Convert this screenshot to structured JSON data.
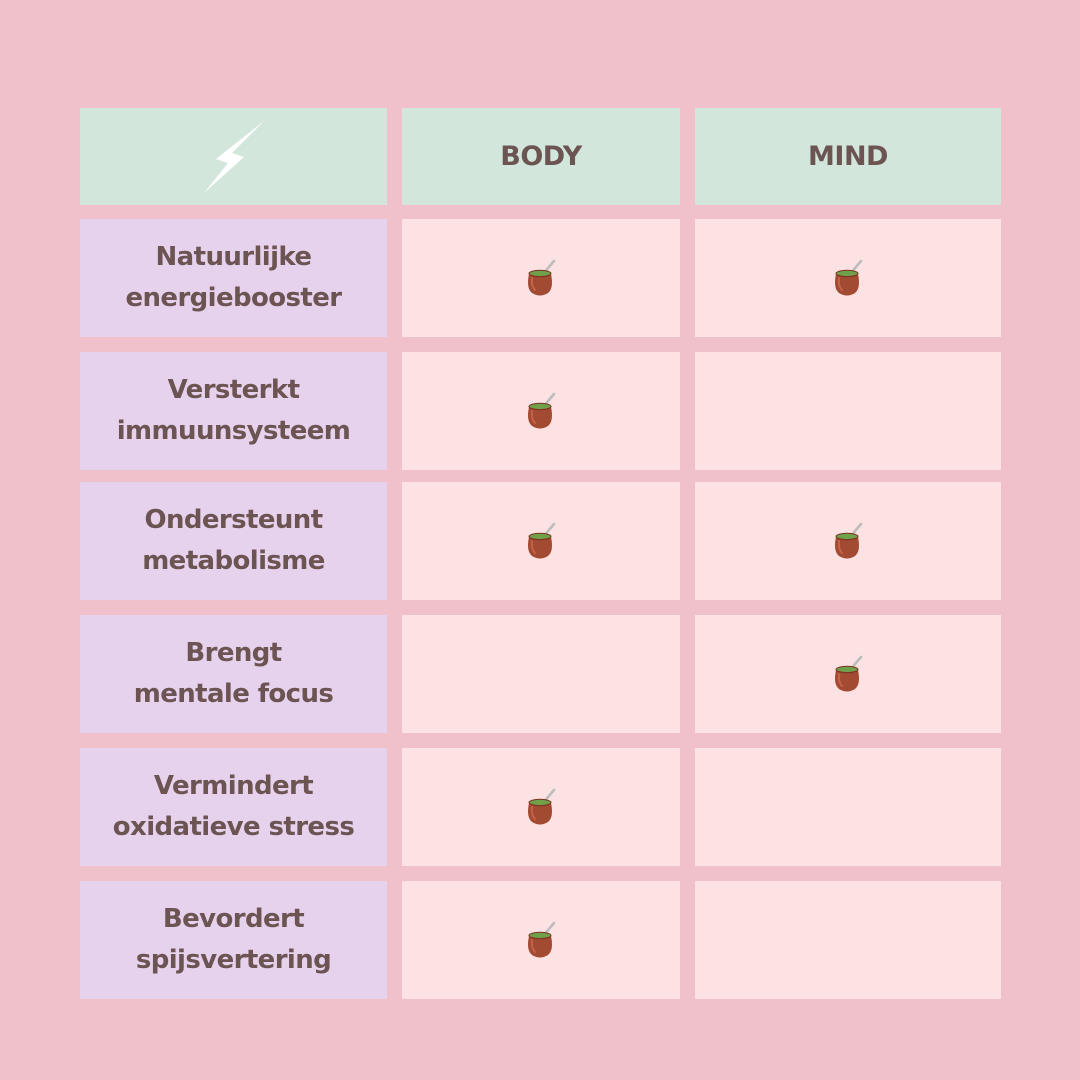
{
  "colors": {
    "background": "#f0c0cb",
    "header_bg": "#d2e6db",
    "label_bg": "#e7d2ee",
    "cell_bg": "#fce2e2",
    "text": "#6b5452"
  },
  "header": {
    "icon": "lightning-bolt-icon",
    "columns": [
      "BODY",
      "MIND"
    ]
  },
  "rows": [
    {
      "label_lines": [
        "Natuurlijke",
        "energiebooster"
      ],
      "body": true,
      "mind": true,
      "icon": "mate-gourd-icon"
    },
    {
      "label_lines": [
        "Versterkt",
        "immuunsysteem"
      ],
      "body": true,
      "mind": false,
      "icon": "mate-gourd-icon"
    },
    {
      "label_lines": [
        "Ondersteunt",
        "metabolisme"
      ],
      "body": true,
      "mind": true,
      "icon": "mate-gourd-icon"
    },
    {
      "label_lines": [
        "Brengt",
        "mentale focus"
      ],
      "body": false,
      "mind": true,
      "icon": "mate-gourd-icon"
    },
    {
      "label_lines": [
        "Vermindert",
        "oxidatieve stress"
      ],
      "body": true,
      "mind": false,
      "icon": "mate-gourd-icon"
    },
    {
      "label_lines": [
        "Bevordert",
        "spijsvertering"
      ],
      "body": true,
      "mind": false,
      "icon": "mate-gourd-icon"
    }
  ]
}
